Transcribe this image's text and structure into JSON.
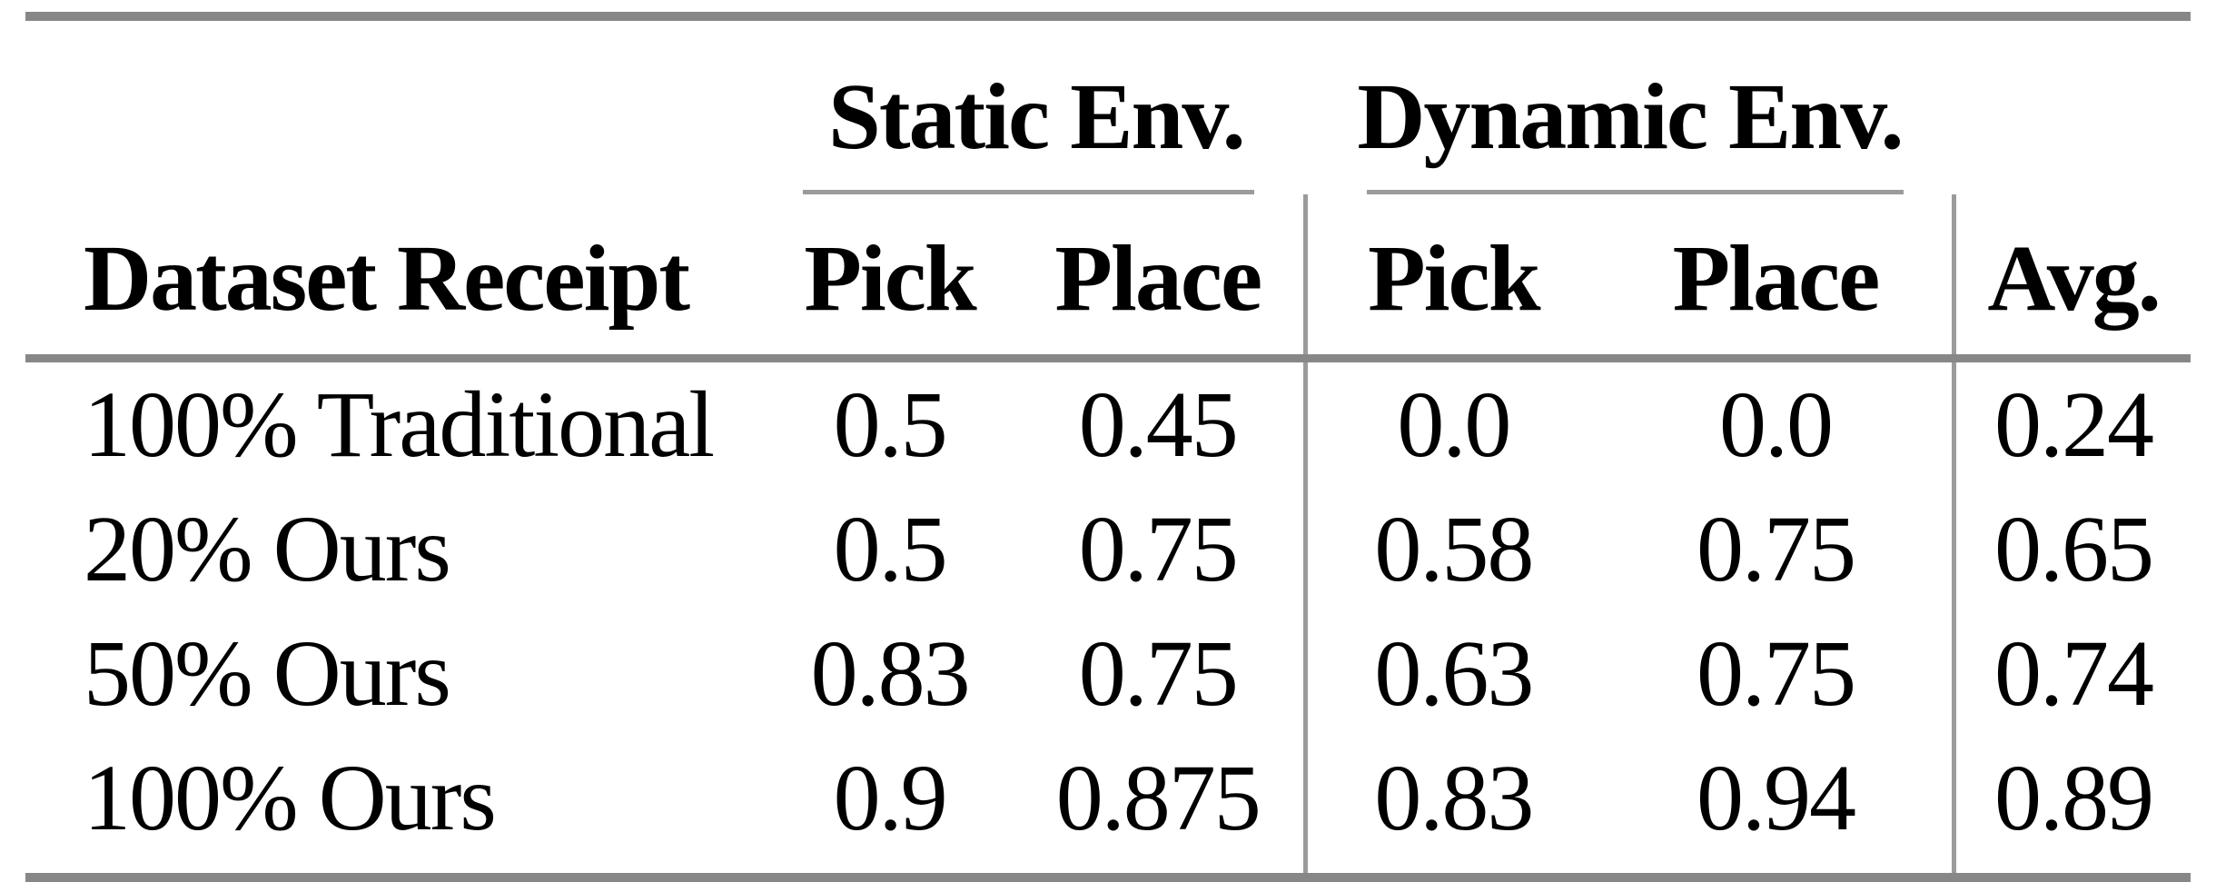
{
  "colors": {
    "background": "#ffffff",
    "text": "#000000",
    "rule_thick": "#878787",
    "rule_thin": "#9b9b9b"
  },
  "table": {
    "group_headers": {
      "static": "Static Env.",
      "dynamic": "Dynamic Env."
    },
    "columns": {
      "dataset": "Dataset Receipt",
      "static_pick": "Pick",
      "static_place": "Place",
      "dynamic_pick": "Pick",
      "dynamic_place": "Place",
      "avg": "Avg."
    },
    "rows": [
      {
        "label": "100% Traditional",
        "values": [
          "0.5",
          "0.45",
          "0.0",
          "0.0",
          "0.24"
        ]
      },
      {
        "label": "20% Ours",
        "values": [
          "0.5",
          "0.75",
          "0.58",
          "0.75",
          "0.65"
        ]
      },
      {
        "label": "50% Ours",
        "values": [
          "0.83",
          "0.75",
          "0.63",
          "0.75",
          "0.74"
        ]
      },
      {
        "label": "100% Ours",
        "values": [
          "0.9",
          "0.875",
          "0.83",
          "0.94",
          "0.89"
        ]
      }
    ]
  },
  "chart_data": {
    "type": "table",
    "columns": [
      "Dataset Receipt",
      "Static Env. Pick",
      "Static Env. Place",
      "Dynamic Env. Pick",
      "Dynamic Env. Place",
      "Avg."
    ],
    "rows": [
      [
        "100% Traditional",
        0.5,
        0.45,
        0.0,
        0.0,
        0.24
      ],
      [
        "20% Ours",
        0.5,
        0.75,
        0.58,
        0.75,
        0.65
      ],
      [
        "50% Ours",
        0.83,
        0.75,
        0.63,
        0.75,
        0.74
      ],
      [
        "100% Ours",
        0.9,
        0.875,
        0.83,
        0.94,
        0.89
      ]
    ]
  }
}
